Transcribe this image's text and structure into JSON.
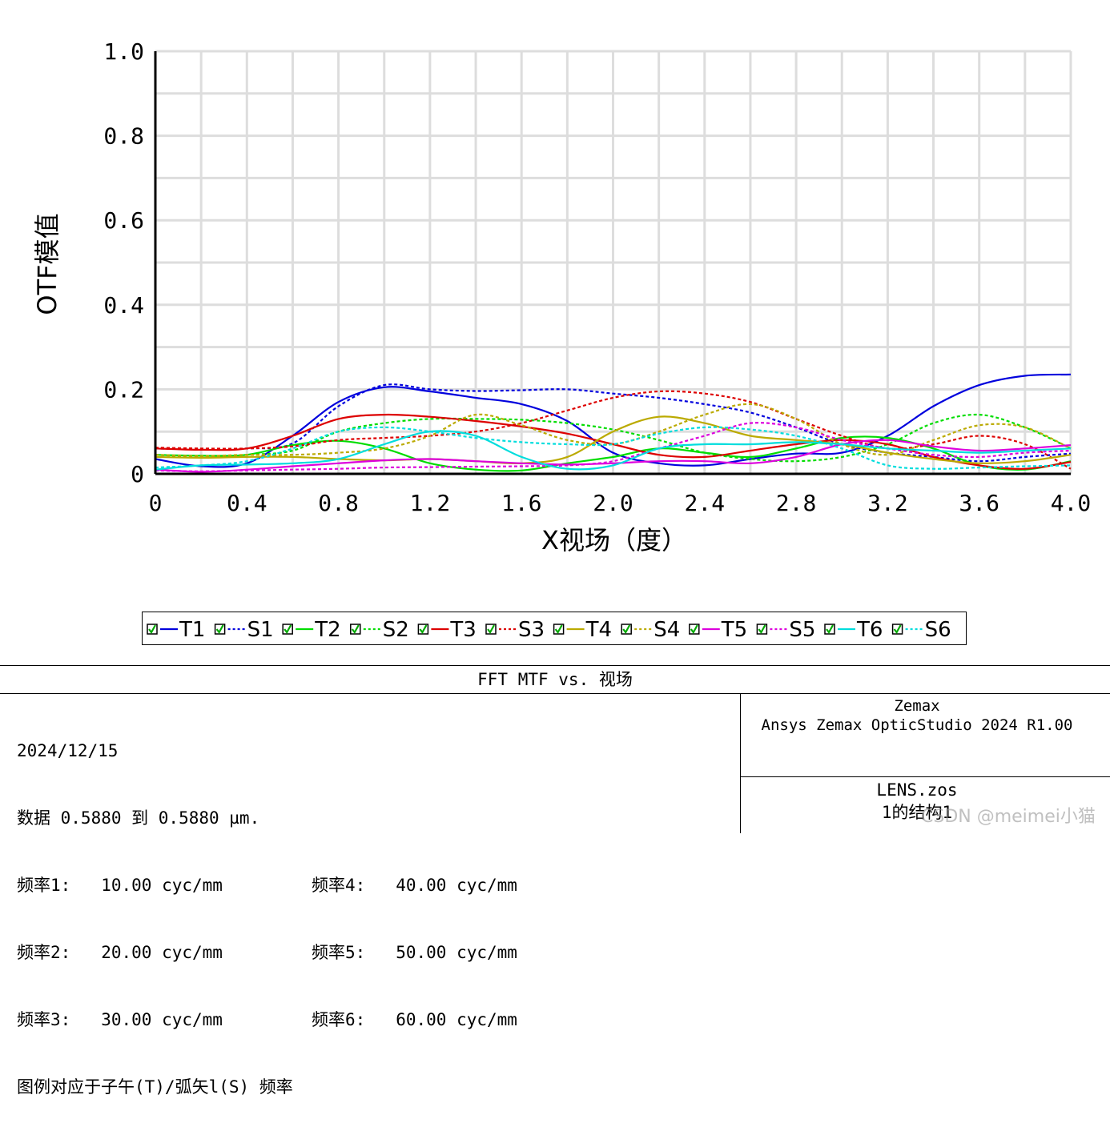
{
  "chart_data": {
    "type": "line",
    "xlabel": "X视场（度）",
    "ylabel": "OTF模值",
    "xlim": [
      0,
      4.0
    ],
    "ylim": [
      0,
      1.0
    ],
    "xticks": [
      "0",
      "0.4",
      "0.8",
      "1.2",
      "1.6",
      "2.0",
      "2.4",
      "2.8",
      "3.2",
      "3.6",
      "4.0"
    ],
    "yticks": [
      "0",
      "0.2",
      "0.4",
      "0.6",
      "0.8",
      "1.0"
    ],
    "grid": true,
    "legend_position": "below",
    "x": [
      0.0,
      0.2,
      0.4,
      0.6,
      0.8,
      1.0,
      1.2,
      1.4,
      1.6,
      1.8,
      2.0,
      2.2,
      2.4,
      2.6,
      2.8,
      3.0,
      3.2,
      3.4,
      3.6,
      3.8,
      4.0
    ],
    "series": [
      {
        "name": "T1",
        "color": "#0000dd",
        "dash": false,
        "values": [
          0.035,
          0.018,
          0.025,
          0.09,
          0.17,
          0.205,
          0.195,
          0.18,
          0.165,
          0.125,
          0.05,
          0.025,
          0.02,
          0.035,
          0.048,
          0.05,
          0.09,
          0.16,
          0.21,
          0.232,
          0.235
        ]
      },
      {
        "name": "S1",
        "color": "#0000dd",
        "dash": true,
        "values": [
          0.06,
          0.058,
          0.06,
          0.072,
          0.16,
          0.21,
          0.2,
          0.196,
          0.198,
          0.2,
          0.19,
          0.18,
          0.165,
          0.145,
          0.11,
          0.07,
          0.05,
          0.04,
          0.03,
          0.04,
          0.048
        ]
      },
      {
        "name": "T2",
        "color": "#00dd00",
        "dash": false,
        "values": [
          0.045,
          0.043,
          0.045,
          0.068,
          0.078,
          0.06,
          0.025,
          0.01,
          0.008,
          0.025,
          0.04,
          0.06,
          0.05,
          0.04,
          0.06,
          0.085,
          0.085,
          0.06,
          0.02,
          0.01,
          0.03
        ]
      },
      {
        "name": "S2",
        "color": "#00dd00",
        "dash": true,
        "values": [
          0.045,
          0.04,
          0.045,
          0.055,
          0.1,
          0.12,
          0.13,
          0.13,
          0.128,
          0.12,
          0.105,
          0.08,
          0.05,
          0.035,
          0.03,
          0.04,
          0.07,
          0.12,
          0.14,
          0.11,
          0.06
        ]
      },
      {
        "name": "T3",
        "color": "#dd0000",
        "dash": false,
        "values": [
          0.06,
          0.057,
          0.06,
          0.09,
          0.13,
          0.14,
          0.135,
          0.125,
          0.112,
          0.095,
          0.07,
          0.045,
          0.04,
          0.055,
          0.07,
          0.08,
          0.07,
          0.04,
          0.02,
          0.012,
          0.028
        ]
      },
      {
        "name": "S3",
        "color": "#dd0000",
        "dash": true,
        "values": [
          0.062,
          0.06,
          0.06,
          0.065,
          0.08,
          0.085,
          0.09,
          0.1,
          0.12,
          0.15,
          0.18,
          0.195,
          0.19,
          0.17,
          0.13,
          0.09,
          0.06,
          0.07,
          0.09,
          0.07,
          0.012
        ]
      },
      {
        "name": "T4",
        "color": "#bbaa00",
        "dash": false,
        "values": [
          0.04,
          0.038,
          0.04,
          0.04,
          0.035,
          0.032,
          0.035,
          0.03,
          0.025,
          0.04,
          0.1,
          0.135,
          0.12,
          0.09,
          0.08,
          0.07,
          0.05,
          0.035,
          0.025,
          0.03,
          0.045
        ]
      },
      {
        "name": "S4",
        "color": "#bbaa00",
        "dash": true,
        "values": [
          0.045,
          0.042,
          0.045,
          0.045,
          0.05,
          0.06,
          0.09,
          0.14,
          0.115,
          0.08,
          0.07,
          0.1,
          0.14,
          0.165,
          0.13,
          0.07,
          0.045,
          0.08,
          0.115,
          0.11,
          0.06
        ]
      },
      {
        "name": "T5",
        "color": "#dd00dd",
        "dash": false,
        "values": [
          0.01,
          0.005,
          0.01,
          0.018,
          0.025,
          0.032,
          0.035,
          0.03,
          0.025,
          0.022,
          0.025,
          0.03,
          0.03,
          0.025,
          0.04,
          0.07,
          0.08,
          0.065,
          0.055,
          0.06,
          0.068
        ]
      },
      {
        "name": "S5",
        "color": "#dd00dd",
        "dash": true,
        "values": [
          0.008,
          0.006,
          0.008,
          0.01,
          0.012,
          0.015,
          0.016,
          0.017,
          0.018,
          0.02,
          0.03,
          0.06,
          0.09,
          0.12,
          0.11,
          0.08,
          0.06,
          0.045,
          0.04,
          0.05,
          0.055
        ]
      },
      {
        "name": "T6",
        "color": "#00dddd",
        "dash": false,
        "values": [
          0.01,
          0.02,
          0.022,
          0.025,
          0.035,
          0.07,
          0.1,
          0.09,
          0.04,
          0.012,
          0.02,
          0.06,
          0.07,
          0.07,
          0.075,
          0.07,
          0.06,
          0.055,
          0.05,
          0.055,
          0.06
        ]
      },
      {
        "name": "S6",
        "color": "#00dddd",
        "dash": true,
        "values": [
          0.015,
          0.02,
          0.03,
          0.06,
          0.1,
          0.11,
          0.1,
          0.085,
          0.075,
          0.07,
          0.07,
          0.095,
          0.11,
          0.105,
          0.09,
          0.06,
          0.02,
          0.012,
          0.015,
          0.018,
          0.02
        ]
      }
    ]
  },
  "info": {
    "title": "FFT MTF vs. 视场",
    "date": "2024/12/15",
    "data_line": "数据 0.5880 到 0.5880 µm.",
    "freqs": [
      "频率1:   10.00 cyc/mm",
      "频率4:   40.00 cyc/mm",
      "频率2:   20.00 cyc/mm",
      "频率5:   50.00 cyc/mm",
      "频率3:   30.00 cyc/mm",
      "频率6:   60.00 cyc/mm"
    ],
    "legend_note": "图例对应于子午(T)/弧矢l(S) 频率",
    "company": "Zemax",
    "product": "Ansys Zemax OpticStudio 2024 R1.00",
    "file": "LENS.zos",
    "config": "1的结构1"
  },
  "watermark": "CSDN @meimei小猫"
}
